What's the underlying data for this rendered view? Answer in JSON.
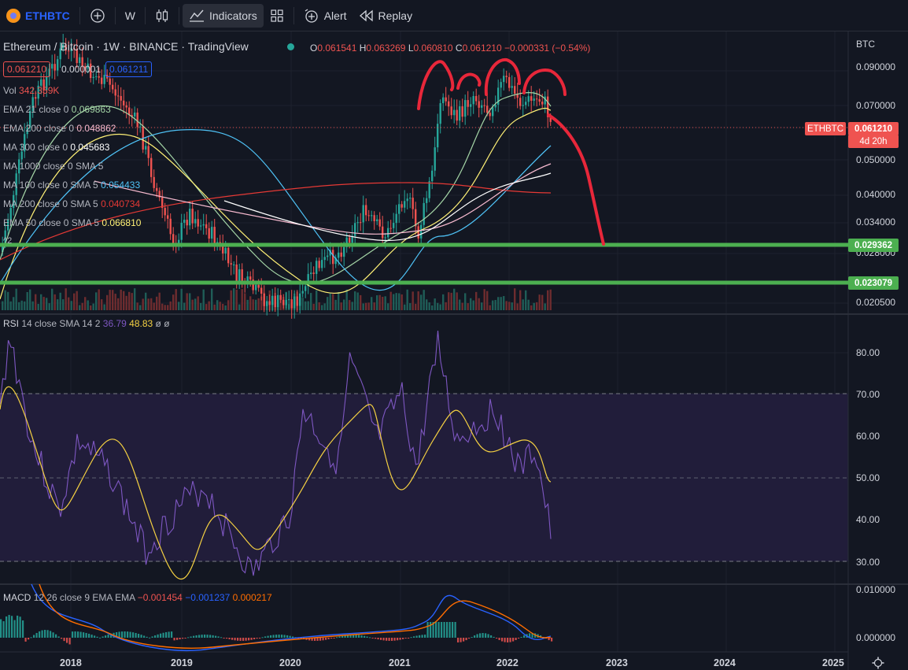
{
  "toolbar": {
    "symbol": "ETHBTC",
    "interval": "W",
    "indicators": "Indicators",
    "alert": "Alert",
    "replay": "Replay"
  },
  "header": {
    "title": "Ethereum / Bitcoin · 1W · BINANCE · TradingView",
    "o_label": "O",
    "o": "0.061541",
    "h_label": "H",
    "h": "0.063269",
    "l_label": "L",
    "l": "0.060810",
    "c_label": "C",
    "c": "0.061210",
    "change": "−0.000331 (−0.54%)",
    "bid": "0.061210",
    "spread": "0.000001",
    "ask": "0.061211"
  },
  "indicators": [
    {
      "name": "Vol",
      "value": "342.359K",
      "color": "#ef5350"
    },
    {
      "name": "EMA 21 close 0",
      "value": "0.069863",
      "color": "#a5d6a7"
    },
    {
      "name": "EMA 200 close 0",
      "value": "0.048862",
      "color": "#f8bbd0"
    },
    {
      "name": "MA 300 close 0",
      "value": "0.045683",
      "color": "#ffffff"
    },
    {
      "name": "MA 1000 close 0 SMA 5",
      "value": "",
      "color": "#9e9e9e"
    },
    {
      "name": "MA 100 close 0 SMA 5",
      "value": "0.054433",
      "color": "#4fc3f7"
    },
    {
      "name": "MA 200 close 0 SMA 5",
      "value": "0.040734",
      "color": "#e53935"
    },
    {
      "name": "EMA 50 close 0 SMA 5",
      "value": "0.066810",
      "color": "#fff176"
    }
  ],
  "collapse_label": "^2",
  "price_axis": {
    "unit": "BTC",
    "ticks": [
      "0.090000",
      "0.070000",
      "0.050000",
      "0.040000",
      "0.034000",
      "0.028000",
      "0.020500"
    ],
    "symbol_tag": "ETHBTC",
    "last_price": "0.061210",
    "countdown": "4d 20h",
    "level_1": "0.029362",
    "level_2": "0.023079"
  },
  "rsi": {
    "label": "RSI",
    "params": "14 close SMA 14 2",
    "value": "36.79",
    "sma": "48.83",
    "extra1": "ø",
    "extra2": "ø",
    "ticks": [
      "80.00",
      "70.00",
      "60.00",
      "50.00",
      "40.00",
      "30.00"
    ]
  },
  "macd": {
    "label": "MACD",
    "params": "12 26 close 9 EMA EMA",
    "hist": "−0.001454",
    "macd": "−0.001237",
    "signal": "0.000217",
    "ticks": [
      "0.010000",
      "0.000000"
    ]
  },
  "time_axis": [
    "2018",
    "2019",
    "2020",
    "2021",
    "2022",
    "2023",
    "2024",
    "2025"
  ],
  "colors": {
    "background": "#131722",
    "up": "#26a69a",
    "down": "#ef5350",
    "support": "#4caf50",
    "annotation": "#e8273a",
    "rsi_line": "#7e57c2",
    "rsi_sma": "#f5d142"
  }
}
